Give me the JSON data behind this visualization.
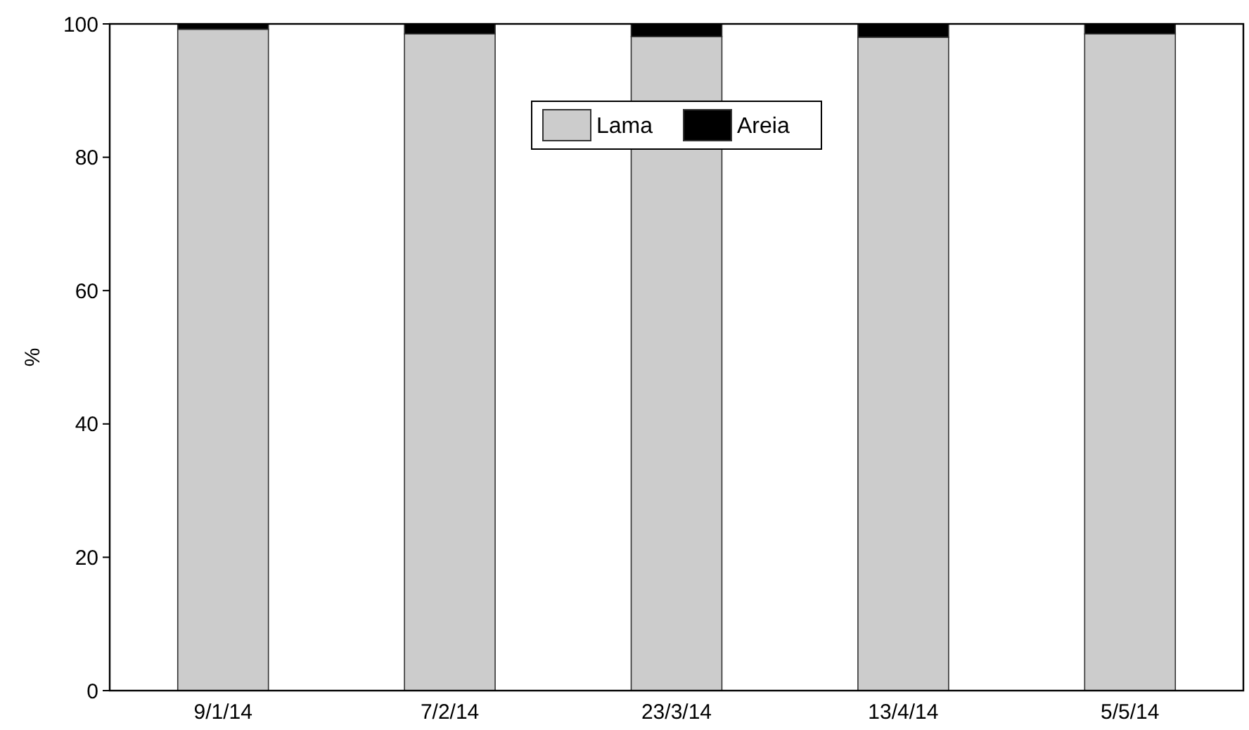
{
  "chart_data": {
    "type": "bar",
    "stacked": true,
    "ylabel": "%",
    "categories": [
      "9/1/14",
      "7/2/14",
      "23/3/14",
      "13/4/14",
      "5/5/14"
    ],
    "series": [
      {
        "name": "Lama",
        "color": "#cccccc",
        "values": [
          99.2,
          98.5,
          98.1,
          98.0,
          98.5
        ]
      },
      {
        "name": "Areia",
        "color": "#000000",
        "values": [
          0.8,
          1.5,
          1.9,
          2.0,
          1.5
        ]
      }
    ],
    "ylim": [
      0,
      100
    ],
    "yticks": [
      0,
      20,
      40,
      60,
      80,
      100
    ],
    "legend": "top",
    "grid": false
  }
}
